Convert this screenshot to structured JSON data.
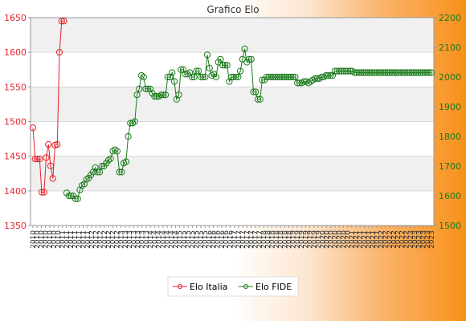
{
  "chart_data": {
    "type": "line",
    "title": "Grafico Elo",
    "y_left": {
      "min": 1350,
      "max": 1650,
      "ticks": [
        1350,
        1400,
        1450,
        1500,
        1550,
        1600,
        1650
      ],
      "color": "#e8202a"
    },
    "y_right": {
      "min": 1500,
      "max": 2200,
      "ticks": [
        1500,
        1600,
        1700,
        1800,
        1900,
        2000,
        2100,
        2200
      ],
      "color": "#1a7a1a"
    },
    "x_tick_labels": [
      "2010",
      "2011",
      "2012",
      "2013",
      "2014",
      "2015",
      "2016",
      "2017",
      "2018",
      "2019",
      "2020",
      "2021",
      "2022",
      "2023"
    ],
    "series": [
      {
        "name": "Elo Italia",
        "axis": "left",
        "color": "#e8202a",
        "values": [
          1491,
          1446,
          1446,
          1446,
          1398,
          1398,
          1448,
          1467,
          1436,
          1418,
          1466,
          1467,
          1600,
          1645,
          1645
        ]
      },
      {
        "name": "Elo FIDE",
        "axis": "right",
        "color": "#1a7a1a",
        "values": [
          1610,
          1600,
          1600,
          1600,
          1590,
          1590,
          1620,
          1635,
          1640,
          1655,
          1660,
          1670,
          1680,
          1695,
          1680,
          1680,
          1700,
          1700,
          1710,
          1720,
          1725,
          1750,
          1755,
          1750,
          1680,
          1680,
          1710,
          1715,
          1800,
          1845,
          1845,
          1850,
          1940,
          1960,
          2005,
          2000,
          1960,
          1960,
          1960,
          1945,
          1935,
          1935,
          1935,
          1940,
          1940,
          1940,
          2000,
          2000,
          2015,
          1985,
          1925,
          1940,
          2025,
          2025,
          2010,
          2010,
          2015,
          2000,
          2000,
          2020,
          2020,
          2000,
          2000,
          2000,
          2075,
          2030,
          2005,
          2010,
          2000,
          2050,
          2060,
          2040,
          2040,
          2040,
          1985,
          2000,
          2000,
          2000,
          2000,
          2020,
          2060,
          2095,
          2050,
          2060,
          2060,
          1950,
          1950,
          1925,
          1925,
          1990,
          1990,
          2000,
          2000,
          2000,
          2000,
          2000,
          2000,
          2000,
          2000,
          2000,
          2000,
          2000,
          2000,
          2000,
          2000,
          1980,
          1980,
          1980,
          1985,
          1985,
          1980,
          1985,
          1990,
          1995,
          1995,
          1995,
          2000,
          2000,
          2005,
          2005,
          2005,
          2005,
          2020,
          2020,
          2020,
          2020,
          2020,
          2020,
          2020,
          2020,
          2020,
          2015,
          2015,
          2015,
          2015,
          2015,
          2015,
          2015,
          2015,
          2015,
          2015,
          2015,
          2015,
          2015,
          2015,
          2015,
          2015,
          2015,
          2015,
          2015,
          2015,
          2015,
          2015,
          2015,
          2015,
          2015,
          2015,
          2015,
          2015,
          2015,
          2015,
          2015,
          2015,
          2015,
          2015,
          2015,
          2015
        ]
      }
    ],
    "legend": {
      "position": "bottom-center"
    }
  }
}
